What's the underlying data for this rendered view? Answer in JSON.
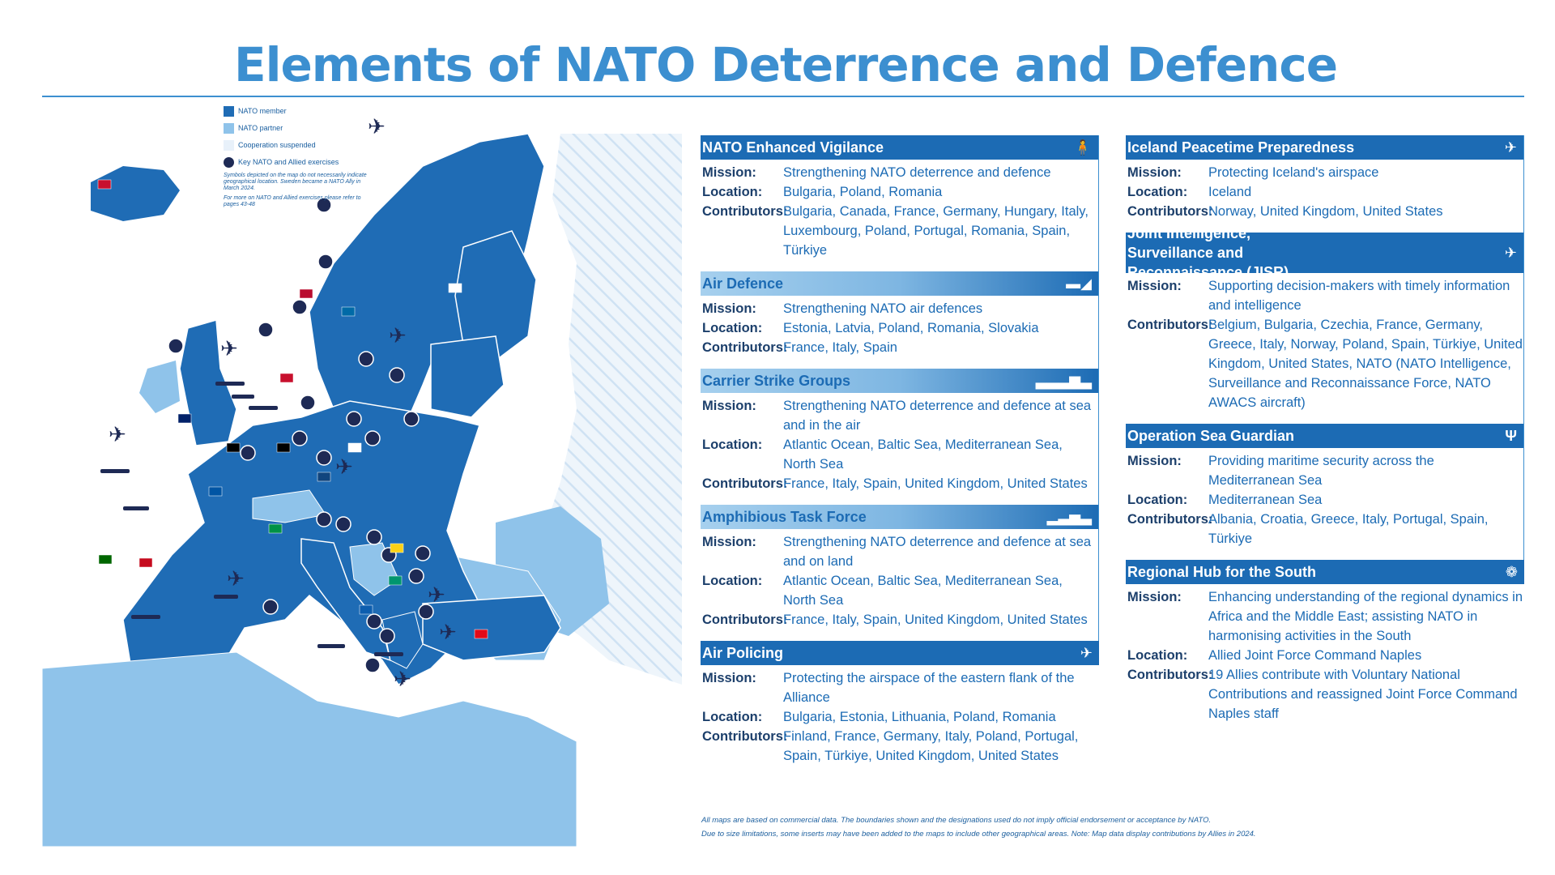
{
  "title": "Elements of NATO Deterrence and Defence",
  "legend": {
    "items": [
      {
        "label": "NATO member",
        "color": "#1f6cb5"
      },
      {
        "label": "NATO partner",
        "color": "#8fc3ea"
      },
      {
        "label": "Cooperation suspended",
        "color": "#e8f1fa"
      },
      {
        "label": "Key NATO and Allied exercises",
        "color": "#1e2a55"
      }
    ],
    "note1": "Symbols depicted on the map do not necessarily indicate geographical location. Sweden became a NATO Ally in March 2024.",
    "note2": "For more on NATO and Allied exercises please refer to pages 43-48"
  },
  "colors": {
    "accent": "#1c6bb4",
    "title": "#3c8fd0",
    "member": "#1f6cb5",
    "partner": "#8fc3ea",
    "dark": "#1e2a55"
  },
  "panels_left": [
    {
      "title": "NATO Enhanced Vigilance",
      "icon": "soldier-icon",
      "glyph": "🧍",
      "style": "solid",
      "rows": [
        {
          "label": "Mission:",
          "value": "Strengthening NATO deterrence and defence"
        },
        {
          "label": "Location:",
          "value": "Bulgaria, Poland, Romania"
        },
        {
          "label": "Contributors:",
          "value": "Bulgaria, Canada, France, Germany, Hungary, Italy, Luxembourg, Poland, Portugal, Romania, Spain, Türkiye"
        }
      ]
    },
    {
      "title": "Air Defence",
      "icon": "missile-launcher-icon",
      "glyph": "▬◢",
      "style": "grad",
      "rows": [
        {
          "label": "Mission:",
          "value": "Strengthening NATO air defences"
        },
        {
          "label": "Location:",
          "value": "Estonia, Latvia, Poland, Romania, Slovakia"
        },
        {
          "label": "Contributors:",
          "value": "France, Italy, Spain"
        }
      ]
    },
    {
      "title": "Carrier Strike Groups",
      "icon": "carrier-icon",
      "glyph": "▃▃▃▆▃",
      "style": "grad",
      "rows": [
        {
          "label": "Mission:",
          "value": "Strengthening NATO deterrence and defence at sea and in the air"
        },
        {
          "label": "Location:",
          "value": "Atlantic Ocean, Baltic Sea, Mediterranean Sea, North Sea"
        },
        {
          "label": "Contributors:",
          "value": "France, Italy, Spain, United Kingdom, United States"
        }
      ]
    },
    {
      "title": "Amphibious Task Force",
      "icon": "ship-icon",
      "glyph": "▂▃▅▃",
      "style": "grad",
      "rows": [
        {
          "label": "Mission:",
          "value": "Strengthening NATO deterrence and defence at sea and on land"
        },
        {
          "label": "Location:",
          "value": "Atlantic Ocean, Baltic Sea, Mediterranean Sea, North Sea"
        },
        {
          "label": "Contributors:",
          "value": "France, Italy, Spain, United Kingdom, United States"
        }
      ]
    },
    {
      "title": "Air Policing",
      "icon": "jet-icon",
      "glyph": "✈",
      "style": "solid",
      "rows": [
        {
          "label": "Mission:",
          "value": "Protecting the airspace of the eastern flank of the Alliance"
        },
        {
          "label": "Location:",
          "value": "Bulgaria, Estonia, Lithuania, Poland, Romania"
        },
        {
          "label": "Contributors:",
          "value": "Finland, France, Germany, Italy, Poland, Portugal, Spain, Türkiye, United Kingdom, United States"
        }
      ]
    }
  ],
  "panels_right": [
    {
      "title": "Iceland Peacetime Preparedness",
      "icon": "jet-icon",
      "glyph": "✈",
      "style": "solid",
      "rows": [
        {
          "label": "Mission:",
          "value": "Protecting Iceland's airspace"
        },
        {
          "label": "Location:",
          "value": "Iceland"
        },
        {
          "label": "Contributors:",
          "value": "Norway, United Kingdom, United States"
        }
      ]
    },
    {
      "title": "Joint Intelligence, Surveillance and Reconnaissance (JISR)",
      "icon": "drone-icon",
      "glyph": "✈",
      "style": "solid",
      "tall": true,
      "rows": [
        {
          "label": "Mission:",
          "value": "Supporting decision-makers with timely information and intelligence"
        },
        {
          "label": "Contributors:",
          "value": "Belgium, Bulgaria, Czechia, France, Germany, Greece, Italy, Norway, Poland, Spain, Türkiye, United Kingdom, United States, NATO (NATO Intelligence, Surveillance and Reconnaissance Force, NATO AWACS aircraft)"
        }
      ]
    },
    {
      "title": "Operation Sea Guardian",
      "icon": "trident-icon",
      "glyph": "Ψ",
      "style": "solid",
      "rows": [
        {
          "label": "Mission:",
          "value": "Providing maritime security across the Mediterranean Sea"
        },
        {
          "label": "Location:",
          "value": "Mediterranean Sea"
        },
        {
          "label": "Contributors:",
          "value": "Albania, Croatia, Greece, Italy, Portugal, Spain, Türkiye"
        }
      ]
    },
    {
      "title": "Regional Hub for the South",
      "icon": "hub-icon",
      "glyph": "❁",
      "style": "solid",
      "rows": [
        {
          "label": "Mission:",
          "value": "Enhancing understanding of the regional dynamics in Africa and the Middle East; assisting NATO in harmonising activities in the South"
        },
        {
          "label": "Location:",
          "value": "Allied Joint Force Command Naples"
        },
        {
          "label": "Contributors:",
          "value": "19 Allies contribute with Voluntary National Contributions and reassigned Joint Force Command Naples staff"
        }
      ]
    }
  ],
  "footnote": {
    "line1": "All maps are based on commercial data. The boundaries shown and the designations used do not imply official endorsement or acceptance by NATO.",
    "line2": "Due to size limitations, some inserts may have been added to the maps to include other geographical areas. Note: Map data display contributions by Allies in 2024."
  }
}
